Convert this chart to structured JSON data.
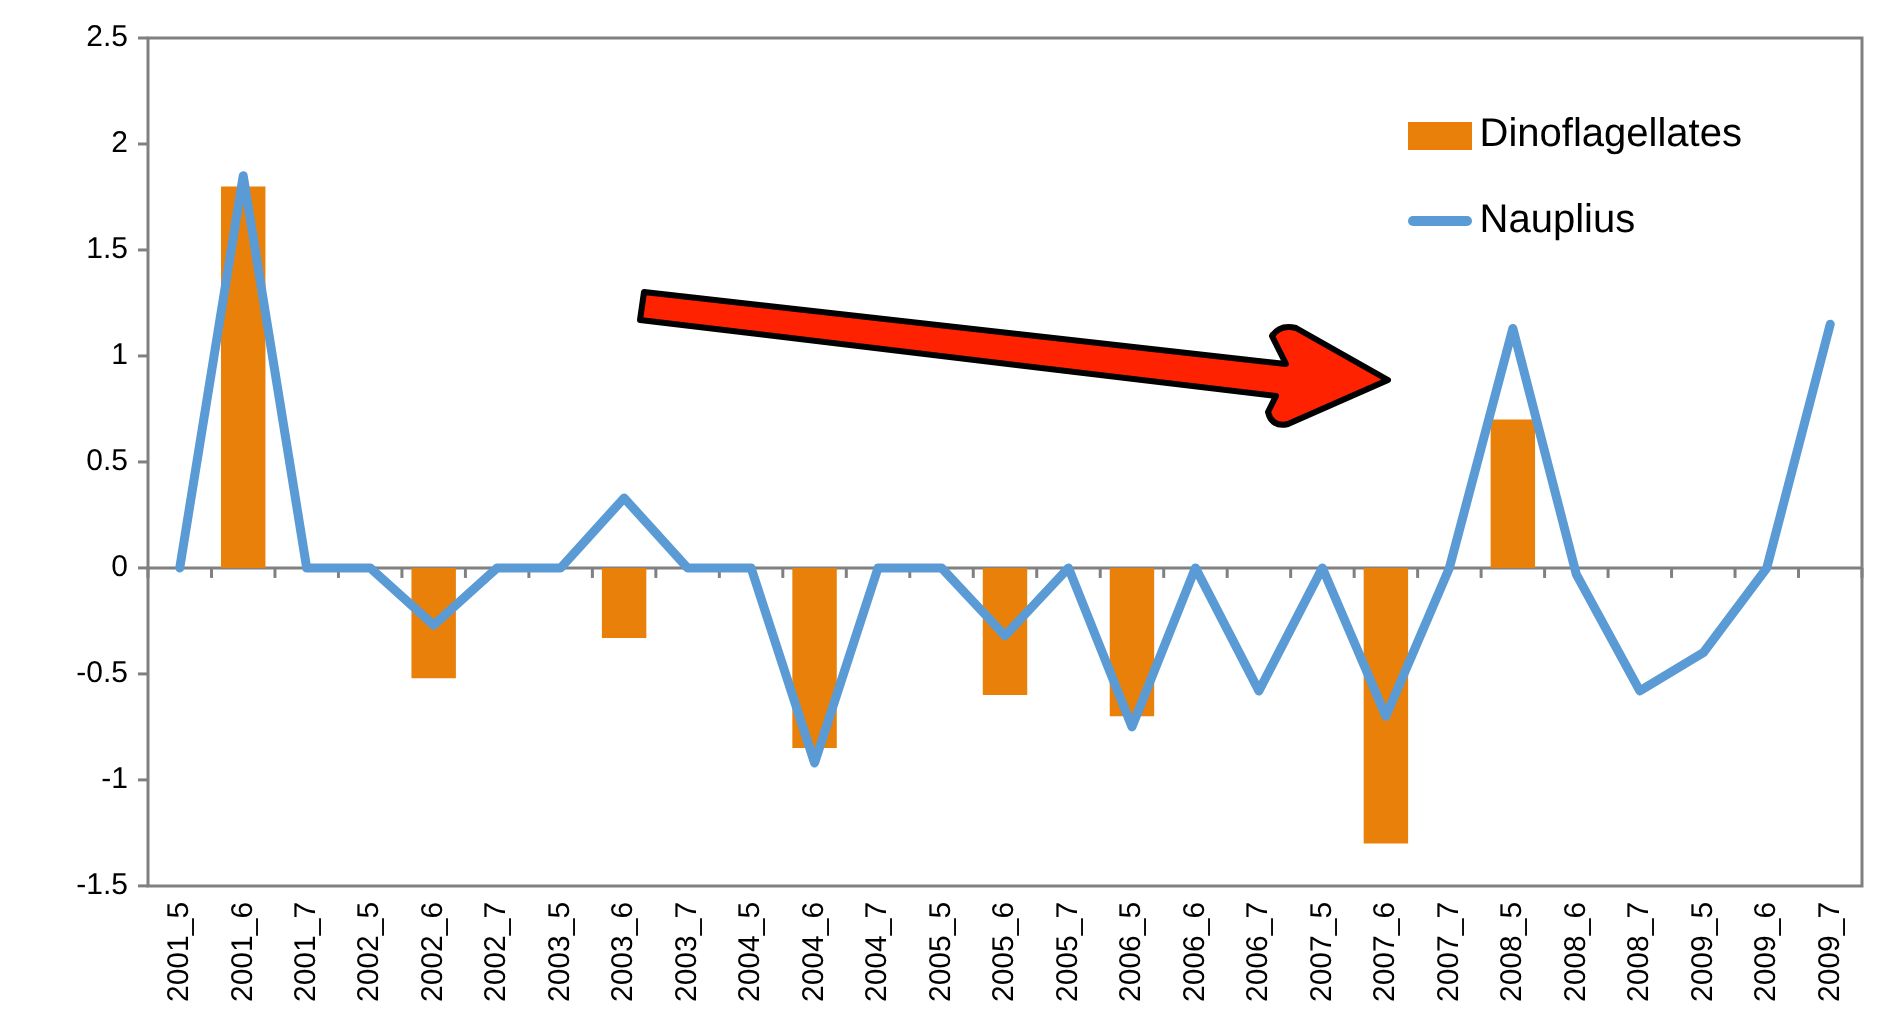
{
  "chart_data": {
    "type": "bar",
    "categories": [
      "2001_5",
      "2001_6",
      "2001_7",
      "2002_5",
      "2002_6",
      "2002_7",
      "2003_5",
      "2003_6",
      "2003_7",
      "2004_5",
      "2004_6",
      "2004_7",
      "2005_5",
      "2005_6",
      "2005_7",
      "2006_5",
      "2006_6",
      "2006_7",
      "2007_5",
      "2007_6",
      "2007_7",
      "2008_5",
      "2008_6",
      "2008_7",
      "2009_5",
      "2009_6",
      "2009_7"
    ],
    "series": [
      {
        "name": "Dinoflagellates",
        "color": "#e8800a",
        "values": [
          0,
          1.8,
          0,
          0,
          -0.52,
          0,
          0,
          -0.33,
          0,
          0,
          -0.85,
          0,
          0,
          -0.6,
          0,
          -0.7,
          0,
          0,
          0,
          -1.3,
          0,
          0.7,
          0,
          0,
          0,
          0,
          0
        ]
      },
      {
        "name": "Nauplius",
        "type": "line",
        "color": "#5b9bd5",
        "values": [
          0,
          1.85,
          0,
          0,
          -0.27,
          0,
          0,
          0.33,
          0,
          0,
          -0.92,
          0,
          0,
          -0.32,
          0,
          -0.75,
          0,
          -0.58,
          0,
          -0.7,
          0,
          1.13,
          -0.03,
          -0.58,
          -0.4,
          0,
          1.15
        ]
      }
    ],
    "ylim": [
      -1.5,
      2.5
    ],
    "yticks": [
      -1.5,
      -1,
      -0.5,
      0,
      0.5,
      1,
      1.5,
      2,
      2.5
    ],
    "legend": "top right",
    "marker": "none",
    "line_style": "solid"
  }
}
